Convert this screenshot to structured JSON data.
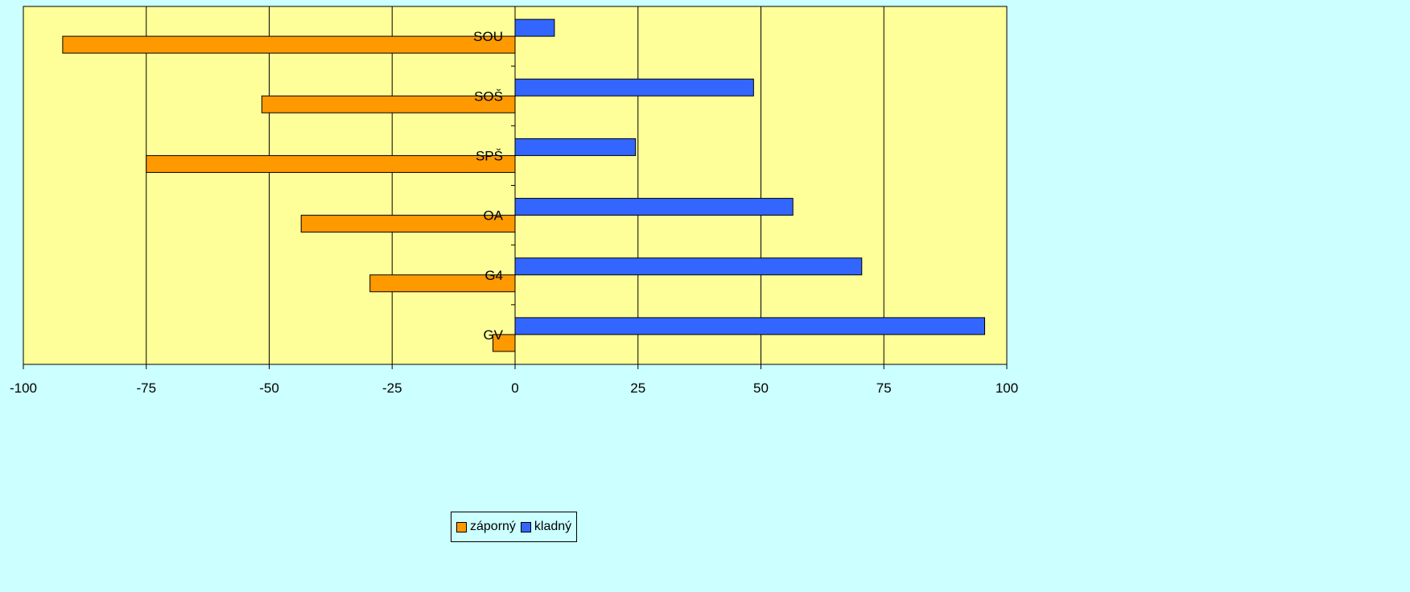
{
  "chart_data": {
    "type": "bar",
    "orientation": "horizontal",
    "categories": [
      "SOU",
      "SOŠ",
      "SPŠ",
      "OA",
      "G4",
      "GV"
    ],
    "series": [
      {
        "name": "záporný",
        "color": "#ff9900",
        "values": [
          -92,
          -51.5,
          -75,
          -43.5,
          -29.5,
          -4.5
        ]
      },
      {
        "name": "kladný",
        "color": "#3366ff",
        "values": [
          8,
          48.5,
          24.5,
          56.5,
          70.5,
          95.5
        ]
      }
    ],
    "xlim": [
      -100,
      100
    ],
    "xticks": [
      -100,
      -75,
      -50,
      -25,
      0,
      25,
      50,
      75,
      100
    ],
    "grid": "vertical",
    "plot_background": "#ffff99",
    "legend_position": "bottom-center"
  }
}
